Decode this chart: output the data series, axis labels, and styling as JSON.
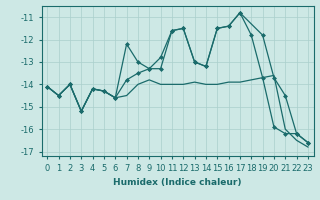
{
  "xlabel": "Humidex (Indice chaleur)",
  "bg_color": "#cde8e5",
  "grid_color": "#aacfcc",
  "line_color": "#1a6b6b",
  "xlim": [
    -0.5,
    23.5
  ],
  "ylim": [
    -17.2,
    -10.5
  ],
  "xticks": [
    0,
    1,
    2,
    3,
    4,
    5,
    6,
    7,
    8,
    9,
    10,
    11,
    12,
    13,
    14,
    15,
    16,
    17,
    18,
    19,
    20,
    21,
    22,
    23
  ],
  "yticks": [
    -17,
    -16,
    -15,
    -14,
    -13,
    -12,
    -11
  ],
  "line1_x": [
    0,
    1,
    2,
    3,
    4,
    5,
    6,
    7,
    8,
    9,
    10,
    11,
    12,
    13,
    14,
    15,
    16,
    17,
    19,
    20,
    21,
    22,
    23
  ],
  "line1_y": [
    -14.1,
    -14.5,
    -14.0,
    -15.2,
    -14.2,
    -14.3,
    -14.6,
    -12.2,
    -13.0,
    -13.3,
    -13.3,
    -11.6,
    -11.5,
    -13.0,
    -13.2,
    -11.5,
    -11.4,
    -10.8,
    -11.8,
    -13.7,
    -14.5,
    -16.2,
    -16.6
  ],
  "line2_x": [
    0,
    1,
    2,
    3,
    4,
    5,
    6,
    7,
    8,
    9,
    10,
    11,
    12,
    13,
    14,
    15,
    16,
    17,
    18,
    19,
    20,
    21,
    22,
    23
  ],
  "line2_y": [
    -14.1,
    -14.5,
    -14.0,
    -15.2,
    -14.2,
    -14.3,
    -14.6,
    -13.8,
    -13.5,
    -13.3,
    -12.8,
    -11.6,
    -11.5,
    -13.0,
    -13.2,
    -11.5,
    -11.4,
    -10.8,
    -11.8,
    -13.7,
    -15.9,
    -16.2,
    -16.2,
    -16.6
  ],
  "line3_x": [
    0,
    1,
    2,
    3,
    4,
    5,
    6,
    7,
    8,
    9,
    10,
    11,
    12,
    13,
    14,
    15,
    16,
    17,
    18,
    19,
    20,
    21,
    22,
    23
  ],
  "line3_y": [
    -14.1,
    -14.5,
    -14.0,
    -15.2,
    -14.2,
    -14.3,
    -14.6,
    -14.5,
    -14.0,
    -13.8,
    -14.0,
    -14.0,
    -14.0,
    -13.9,
    -14.0,
    -14.0,
    -13.9,
    -13.9,
    -13.8,
    -13.7,
    -13.6,
    -16.0,
    -16.5,
    -16.8
  ]
}
